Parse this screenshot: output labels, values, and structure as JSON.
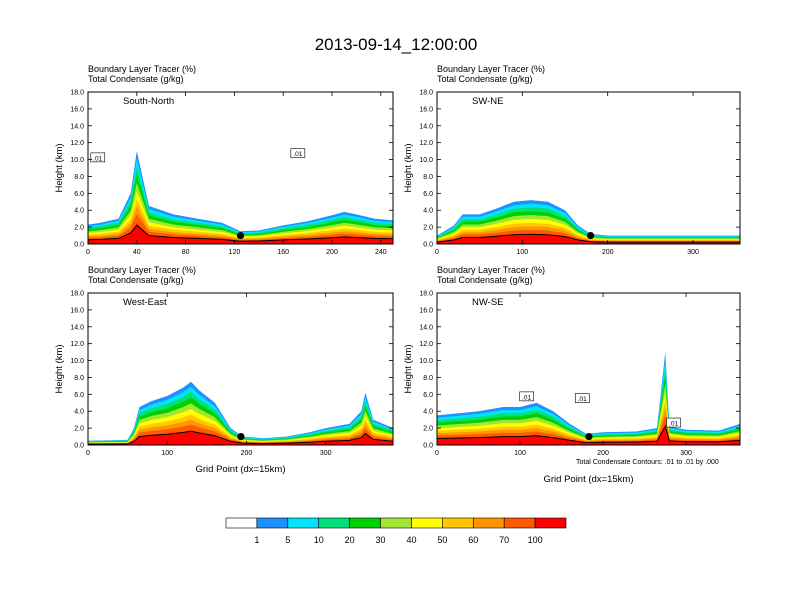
{
  "figure": {
    "title": "2013-09-14_12:00:00",
    "subtitle_line1": "Boundary Layer Tracer   (%)",
    "subtitle_line2": "Total Condensate   (g/kg)",
    "contour_note": "Total Condensate Contours: .01 to .01 by .000"
  },
  "colorbar": {
    "levels": [
      "1",
      "5",
      "10",
      "20",
      "30",
      "40",
      "50",
      "60",
      "70",
      "100"
    ],
    "colors": [
      "#ffffff",
      "#1e90ff",
      "#00e5ff",
      "#00e07a",
      "#00d000",
      "#a0e632",
      "#ffff00",
      "#ffc800",
      "#ff9600",
      "#ff5a00",
      "#ff0000"
    ]
  },
  "chart_data": [
    {
      "type": "area",
      "panel_label": "South-North",
      "ylabel": "Height (km)",
      "xlabel": "",
      "xlim": [
        0,
        250
      ],
      "ylim": [
        0,
        18
      ],
      "xticks": [
        "0",
        "40",
        "80",
        "120",
        "160",
        "200",
        "240"
      ],
      "xtick_values": [
        0,
        40,
        80,
        120,
        160,
        200,
        240
      ],
      "yticks": [
        "0.0",
        "2.0",
        "4.0",
        "6.0",
        "8.0",
        "10.0",
        "12.0",
        "14.0",
        "16.0",
        "18.0"
      ],
      "contour_labels": [
        {
          "text": ".01",
          "x": 8,
          "y": 10.2
        },
        {
          "text": ".01",
          "x": 172,
          "y": 10.7
        }
      ],
      "marker": {
        "x": 125,
        "y": 1.0
      },
      "series": [
        {
          "x": [
            0,
            10,
            25,
            35,
            40,
            50,
            70,
            90,
            110,
            125,
            140,
            160,
            180,
            200,
            210,
            220,
            235,
            250
          ],
          "values": [
            2.3,
            2.5,
            3.0,
            6.0,
            11.0,
            4.5,
            3.5,
            3.0,
            2.5,
            1.5,
            1.6,
            2.2,
            2.7,
            3.4,
            3.8,
            3.5,
            3.0,
            2.8
          ]
        }
      ]
    },
    {
      "type": "area",
      "panel_label": "SW-NE",
      "ylabel": "Height (km)",
      "xlabel": "",
      "xlim": [
        0,
        355
      ],
      "ylim": [
        0,
        18
      ],
      "xticks": [
        "0",
        "100",
        "200",
        "300"
      ],
      "xtick_values": [
        0,
        100,
        200,
        300
      ],
      "yticks": [
        "0.0",
        "2.0",
        "4.0",
        "6.0",
        "8.0",
        "10.0",
        "12.0",
        "14.0",
        "16.0",
        "18.0"
      ],
      "contour_labels": [],
      "marker": {
        "x": 180,
        "y": 1.0
      },
      "series": [
        {
          "x": [
            0,
            20,
            30,
            50,
            70,
            90,
            110,
            130,
            150,
            165,
            180,
            200,
            250,
            300,
            355
          ],
          "values": [
            1.0,
            2.2,
            3.5,
            3.5,
            4.2,
            5.0,
            5.2,
            5.0,
            4.0,
            2.2,
            1.2,
            1.0,
            1.0,
            1.0,
            1.0
          ]
        }
      ]
    },
    {
      "type": "area",
      "panel_label": "West-East",
      "ylabel": "Height (km)",
      "xlabel": "Grid Point  (dx=15km)",
      "xlim": [
        0,
        385
      ],
      "ylim": [
        0,
        18
      ],
      "xticks": [
        "0",
        "100",
        "200",
        "300"
      ],
      "xtick_values": [
        0,
        100,
        200,
        300
      ],
      "yticks": [
        "0.0",
        "2.0",
        "4.0",
        "6.0",
        "8.0",
        "10.0",
        "12.0",
        "14.0",
        "16.0",
        "18.0"
      ],
      "contour_labels": [],
      "marker": {
        "x": 193,
        "y": 1.0
      },
      "series": [
        {
          "x": [
            0,
            50,
            58,
            65,
            80,
            100,
            120,
            130,
            140,
            160,
            180,
            195,
            220,
            250,
            280,
            300,
            330,
            345,
            350,
            360,
            385
          ],
          "values": [
            0.5,
            0.6,
            2.0,
            4.5,
            5.2,
            5.8,
            6.8,
            7.5,
            6.5,
            5.0,
            2.0,
            1.0,
            0.8,
            1.0,
            1.5,
            2.0,
            2.5,
            4.0,
            6.2,
            3.0,
            2.0
          ]
        }
      ]
    },
    {
      "type": "area",
      "panel_label": "NW-SE",
      "ylabel": "Height (km)",
      "xlabel": "Grid Point  (dx=15km)",
      "xlim": [
        0,
        365
      ],
      "ylim": [
        0,
        18
      ],
      "xticks": [
        "0",
        "100",
        "200",
        "300"
      ],
      "xtick_values": [
        0,
        100,
        200,
        300
      ],
      "yticks": [
        "0.0",
        "2.0",
        "4.0",
        "6.0",
        "8.0",
        "10.0",
        "12.0",
        "14.0",
        "16.0",
        "18.0"
      ],
      "contour_labels": [
        {
          "text": ".01",
          "x": 108,
          "y": 5.7
        },
        {
          "text": ".01",
          "x": 175,
          "y": 5.5
        },
        {
          "text": ".01",
          "x": 285,
          "y": 2.6
        }
      ],
      "marker": {
        "x": 183,
        "y": 1.0
      },
      "series": [
        {
          "x": [
            0,
            50,
            80,
            100,
            120,
            140,
            160,
            180,
            200,
            240,
            265,
            275,
            280,
            300,
            340,
            365
          ],
          "values": [
            3.5,
            4.0,
            4.5,
            4.5,
            5.0,
            4.0,
            2.5,
            1.3,
            1.5,
            1.6,
            2.0,
            11.0,
            2.2,
            1.8,
            1.7,
            2.5
          ]
        }
      ]
    }
  ]
}
